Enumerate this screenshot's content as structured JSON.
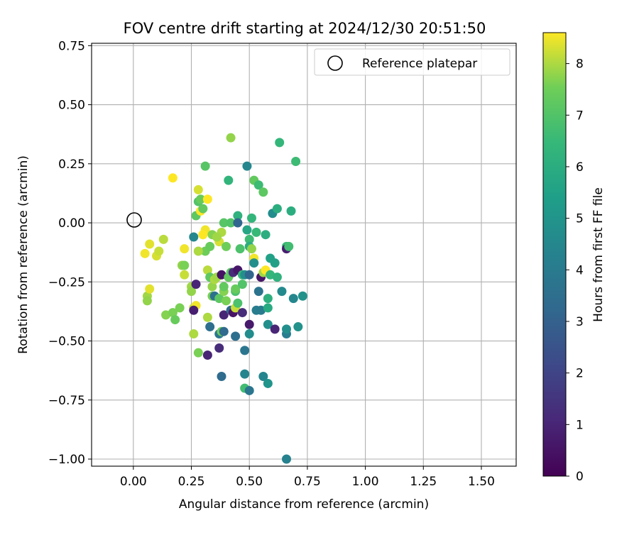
{
  "chart_data": {
    "type": "scatter",
    "title": "FOV centre drift starting at 2024/12/30 20:51:50",
    "xlabel": "Angular distance from reference (arcmin)",
    "ylabel": "Rotation from reference (arcmin)",
    "xlim": [
      -0.18,
      1.65
    ],
    "ylim": [
      -1.03,
      0.76
    ],
    "xticks": [
      "0.00",
      "0.25",
      "0.50",
      "0.75",
      "1.00",
      "1.25",
      "1.50"
    ],
    "yticks": [
      "0.75",
      "0.50",
      "0.25",
      "0.00",
      "−0.25",
      "−0.50",
      "−0.75",
      "−1.00"
    ],
    "grid": true,
    "legend": {
      "placement": "upper-right",
      "entries": [
        "Reference platepar"
      ]
    },
    "colorbar": {
      "label": "Hours from first FF file",
      "range": [
        0,
        8.6
      ],
      "ticks": [
        "0",
        "1",
        "2",
        "3",
        "4",
        "5",
        "6",
        "7",
        "8"
      ],
      "colormap": "viridis"
    },
    "reference_point": {
      "x": 0.0,
      "y": 0.0
    },
    "points": [
      [
        0.05,
        -0.13,
        8.5
      ],
      [
        0.07,
        -0.09,
        8.4
      ],
      [
        0.1,
        -0.14,
        8.3
      ],
      [
        0.11,
        -0.12,
        8.2
      ],
      [
        0.13,
        -0.07,
        8.1
      ],
      [
        0.06,
        -0.31,
        7.9
      ],
      [
        0.06,
        -0.33,
        7.8
      ],
      [
        0.07,
        -0.28,
        8.4
      ],
      [
        0.14,
        -0.39,
        7.7
      ],
      [
        0.17,
        -0.38,
        7.6
      ],
      [
        0.18,
        -0.41,
        7.4
      ],
      [
        0.2,
        -0.36,
        7.6
      ],
      [
        0.21,
        -0.18,
        7.8
      ],
      [
        0.22,
        -0.18,
        7.6
      ],
      [
        0.22,
        -0.22,
        8.2
      ],
      [
        0.22,
        -0.11,
        8.5
      ],
      [
        0.17,
        0.19,
        8.6
      ],
      [
        0.25,
        -0.27,
        7.9
      ],
      [
        0.25,
        -0.29,
        7.8
      ],
      [
        0.26,
        -0.47,
        8.0
      ],
      [
        0.26,
        -0.36,
        8.1
      ],
      [
        0.27,
        -0.35,
        8.5
      ],
      [
        0.26,
        -0.06,
        4.5
      ],
      [
        0.27,
        0.03,
        7.2
      ],
      [
        0.28,
        0.14,
        8.3
      ],
      [
        0.28,
        0.09,
        7.0
      ],
      [
        0.29,
        0.1,
        7.4
      ],
      [
        0.28,
        -0.55,
        7.6
      ],
      [
        0.27,
        -0.26,
        1.0
      ],
      [
        0.26,
        -0.37,
        0.8
      ],
      [
        0.29,
        0.05,
        8.6
      ],
      [
        0.3,
        0.06,
        7.3
      ],
      [
        0.3,
        -0.05,
        8.3
      ],
      [
        0.31,
        -0.03,
        8.5
      ],
      [
        0.31,
        -0.12,
        7.5
      ],
      [
        0.32,
        0.1,
        8.6
      ],
      [
        0.31,
        0.24,
        7.1
      ],
      [
        0.32,
        -0.2,
        8.1
      ],
      [
        0.32,
        -0.56,
        1.0
      ],
      [
        0.32,
        -0.4,
        8.0
      ],
      [
        0.33,
        -0.1,
        7.4
      ],
      [
        0.33,
        -0.23,
        7.2
      ],
      [
        0.34,
        -0.31,
        7.6
      ],
      [
        0.33,
        -0.44,
        3.5
      ],
      [
        0.34,
        -0.27,
        7.8
      ],
      [
        0.35,
        -0.31,
        3.6
      ],
      [
        0.35,
        -0.24,
        8.0
      ],
      [
        0.36,
        -0.23,
        7.9
      ],
      [
        0.36,
        -0.06,
        8.2
      ],
      [
        0.37,
        -0.08,
        8.3
      ],
      [
        0.37,
        -0.32,
        7.2
      ],
      [
        0.37,
        -0.47,
        3.8
      ],
      [
        0.37,
        -0.53,
        1.2
      ],
      [
        0.38,
        -0.22,
        0.5
      ],
      [
        0.38,
        -0.46,
        7.5
      ],
      [
        0.38,
        -0.04,
        8.0
      ],
      [
        0.39,
        0.0,
        7.1
      ],
      [
        0.39,
        -0.29,
        7.7
      ],
      [
        0.39,
        -0.27,
        7.3
      ],
      [
        0.39,
        -0.39,
        1.0
      ],
      [
        0.4,
        -0.33,
        7.6
      ],
      [
        0.4,
        -0.1,
        7.5
      ],
      [
        0.38,
        -0.65,
        3.4
      ],
      [
        0.39,
        -0.46,
        3.3
      ],
      [
        0.41,
        0.18,
        6.3
      ],
      [
        0.41,
        -0.23,
        7.3
      ],
      [
        0.42,
        -0.21,
        7.2
      ],
      [
        0.42,
        -0.37,
        3.3
      ],
      [
        0.42,
        0.0,
        7.0
      ],
      [
        0.42,
        0.36,
        7.8
      ],
      [
        0.43,
        -0.21,
        1.2
      ],
      [
        0.43,
        -0.38,
        0.5
      ],
      [
        0.44,
        -0.29,
        6.9
      ],
      [
        0.44,
        -0.28,
        7.4
      ],
      [
        0.44,
        -0.36,
        8.2
      ],
      [
        0.45,
        0.03,
        6.2
      ],
      [
        0.44,
        -0.48,
        3.5
      ],
      [
        0.45,
        -0.34,
        6.9
      ],
      [
        0.45,
        -0.2,
        0.6
      ],
      [
        0.45,
        -0.0,
        3.2
      ],
      [
        0.46,
        -0.11,
        6.9
      ],
      [
        0.47,
        -0.38,
        1.2
      ],
      [
        0.47,
        -0.22,
        6.5
      ],
      [
        0.47,
        -0.26,
        7.0
      ],
      [
        0.48,
        -0.54,
        3.8
      ],
      [
        0.48,
        -0.64,
        4.4
      ],
      [
        0.48,
        -0.22,
        4.8
      ],
      [
        0.49,
        -0.03,
        5.7
      ],
      [
        0.48,
        -0.7,
        6.7
      ],
      [
        0.49,
        0.24,
        4.5
      ],
      [
        0.5,
        -0.07,
        6.6
      ],
      [
        0.5,
        -0.1,
        6.0
      ],
      [
        0.5,
        -0.71,
        3.8
      ],
      [
        0.5,
        -0.43,
        0.7
      ],
      [
        0.5,
        -0.47,
        4.7
      ],
      [
        0.5,
        -0.22,
        3.2
      ],
      [
        0.51,
        0.02,
        6.4
      ],
      [
        0.51,
        -0.11,
        7.8
      ],
      [
        0.52,
        -0.15,
        8.5
      ],
      [
        0.52,
        -0.17,
        4.8
      ],
      [
        0.52,
        0.18,
        7.3
      ],
      [
        0.53,
        -0.37,
        4.1
      ],
      [
        0.53,
        -0.04,
        6.5
      ],
      [
        0.54,
        -0.29,
        3.7
      ],
      [
        0.54,
        0.16,
        6.6
      ],
      [
        0.55,
        -0.37,
        4.0
      ],
      [
        0.55,
        -0.23,
        0.6
      ],
      [
        0.56,
        0.13,
        7.2
      ],
      [
        0.56,
        -0.21,
        7.9
      ],
      [
        0.56,
        -0.65,
        4.4
      ],
      [
        0.57,
        -0.05,
        6.0
      ],
      [
        0.57,
        -0.2,
        8.6
      ],
      [
        0.58,
        -0.32,
        6.1
      ],
      [
        0.58,
        -0.36,
        5.9
      ],
      [
        0.58,
        -0.43,
        4.8
      ],
      [
        0.58,
        -0.68,
        5.0
      ],
      [
        0.59,
        -0.15,
        5.5
      ],
      [
        0.59,
        -0.22,
        6.4
      ],
      [
        0.6,
        0.04,
        4.7
      ],
      [
        0.61,
        -0.17,
        5.5
      ],
      [
        0.61,
        -0.45,
        1.0
      ],
      [
        0.62,
        -0.23,
        6.2
      ],
      [
        0.62,
        0.06,
        6.0
      ],
      [
        0.63,
        0.34,
        6.4
      ],
      [
        0.64,
        -0.29,
        4.6
      ],
      [
        0.66,
        -0.1,
        6.5
      ],
      [
        0.66,
        -0.11,
        0.8
      ],
      [
        0.66,
        -0.47,
        4.1
      ],
      [
        0.66,
        -0.45,
        4.8
      ],
      [
        0.67,
        -0.1,
        6.7
      ],
      [
        0.68,
        0.05,
        6.0
      ],
      [
        0.69,
        -0.32,
        4.5
      ],
      [
        0.7,
        0.26,
        6.6
      ],
      [
        0.71,
        -0.44,
        4.9
      ],
      [
        0.73,
        -0.31,
        4.9
      ],
      [
        0.66,
        -1.0,
        4.3
      ],
      [
        0.28,
        -0.12,
        8.0
      ],
      [
        0.3,
        -0.05,
        8.6
      ],
      [
        0.34,
        -0.05,
        7.7
      ],
      [
        0.36,
        -0.06,
        7.9
      ]
    ]
  }
}
